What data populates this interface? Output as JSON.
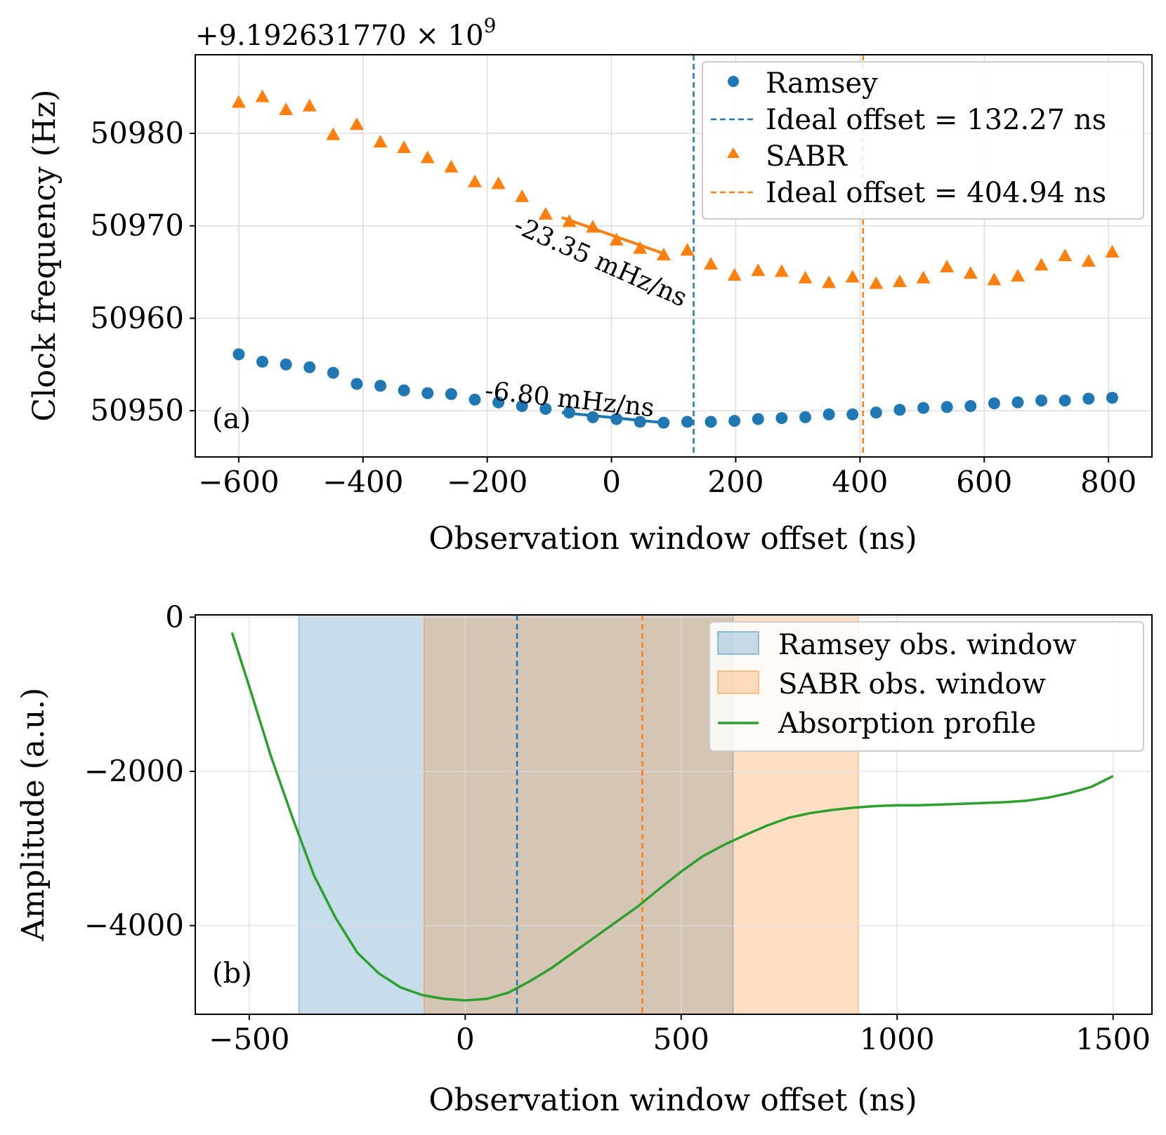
{
  "colors": {
    "ramsey": "#1f77b4",
    "sabr": "#ff7f0e",
    "absorption": "#2ca02c",
    "grid": "#dddddd"
  },
  "chart_data": [
    {
      "type": "scatter",
      "panel_label": "(a)",
      "offset_text": "+9.192631770 × 10",
      "offset_exponent": "9",
      "xlabel": "Observation window offset (ns)",
      "ylabel": "Clock frequency (Hz)",
      "xlim": [
        -670,
        870
      ],
      "ylim": [
        50945,
        50988.5
      ],
      "xticks": [
        -600,
        -400,
        -200,
        0,
        200,
        400,
        600,
        800
      ],
      "xtick_labels": [
        "−600",
        "−400",
        "−200",
        "0",
        "200",
        "400",
        "600",
        "800"
      ],
      "yticks": [
        50950,
        50960,
        50970,
        50980
      ],
      "ytick_labels": [
        "50950",
        "50960",
        "50970",
        "50980"
      ],
      "grid": true,
      "legend": [
        "Ramsey",
        "Ideal offset = 132.27 ns",
        "SABR",
        "Ideal offset = 404.94 ns"
      ],
      "legend_loc": "top-right",
      "series": [
        {
          "name": "Ramsey",
          "marker": "circle",
          "x": [
            -600,
            -562,
            -524,
            -486,
            -448,
            -410,
            -372,
            -334,
            -296,
            -258,
            -220,
            -182,
            -144,
            -106,
            -68,
            -30,
            8,
            46,
            84,
            122,
            160,
            198,
            236,
            274,
            312,
            350,
            388,
            426,
            464,
            502,
            540,
            578,
            616,
            654,
            692,
            730,
            768,
            806
          ],
          "y": [
            50956.1,
            50955.3,
            50955.0,
            50954.7,
            50954.1,
            50952.9,
            50952.7,
            50952.2,
            50951.9,
            50951.8,
            50951.2,
            50950.9,
            50950.5,
            50950.2,
            50949.8,
            50949.3,
            50949.1,
            50948.8,
            50948.7,
            50948.8,
            50948.8,
            50948.9,
            50949.1,
            50949.2,
            50949.3,
            50949.6,
            50949.6,
            50949.8,
            50950.1,
            50950.3,
            50950.4,
            50950.5,
            50950.8,
            50950.9,
            50951.1,
            50951.1,
            50951.3,
            50951.4
          ]
        },
        {
          "name": "SABR",
          "marker": "triangle",
          "x": [
            -600,
            -562,
            -524,
            -486,
            -448,
            -410,
            -372,
            -334,
            -296,
            -258,
            -220,
            -182,
            -144,
            -106,
            -68,
            -30,
            8,
            46,
            84,
            122,
            160,
            198,
            236,
            274,
            312,
            350,
            388,
            426,
            464,
            502,
            540,
            578,
            616,
            654,
            692,
            730,
            768,
            806
          ],
          "y": [
            50983.3,
            50983.9,
            50982.5,
            50982.9,
            50979.8,
            50980.9,
            50979.0,
            50978.4,
            50977.3,
            50976.3,
            50974.7,
            50974.5,
            50973.1,
            50971.2,
            50970.4,
            50969.8,
            50968.4,
            50967.5,
            50966.8,
            50967.3,
            50965.8,
            50964.6,
            50965.1,
            50965.0,
            50964.3,
            50963.8,
            50964.4,
            50963.7,
            50963.9,
            50964.3,
            50965.5,
            50964.8,
            50964.1,
            50964.5,
            50965.7,
            50966.7,
            50966.1,
            50967.1
          ]
        }
      ],
      "fits": [
        {
          "name": "Ramsey slope fit",
          "series": "Ramsey",
          "x": [
            -80,
            84
          ],
          "y": [
            50949.8,
            50948.7
          ],
          "label": "-6.80 mHz/ns",
          "label_x": -205,
          "label_y": 50951.3,
          "label_angle_deg": 6
        },
        {
          "name": "SABR slope fit",
          "series": "SABR",
          "x": [
            -80,
            84
          ],
          "y": [
            50970.9,
            50967.0
          ],
          "label": "-23.35 mHz/ns",
          "label_x": -160,
          "label_y": 50969.4,
          "label_angle_deg": 24
        }
      ],
      "vlines": [
        {
          "name": "Ideal offset Ramsey",
          "series": "Ramsey",
          "x": 132.27
        },
        {
          "name": "Ideal offset SABR",
          "series": "SABR",
          "x": 404.94
        }
      ]
    },
    {
      "type": "line",
      "panel_label": "(b)",
      "xlabel": "Observation window offset (ns)",
      "ylabel": "Amplitude (a.u.)",
      "xlim": [
        -625,
        1590
      ],
      "ylim": [
        -5150,
        30
      ],
      "xticks": [
        -500,
        0,
        500,
        1000,
        1500
      ],
      "xtick_labels": [
        "−500",
        "0",
        "500",
        "1000",
        "1500"
      ],
      "yticks": [
        0,
        -2000,
        -4000
      ],
      "ytick_labels": [
        "0",
        "−2000",
        "−4000"
      ],
      "grid": true,
      "legend": [
        "Ramsey obs. window",
        "SABR obs. window",
        "Absorption profile"
      ],
      "legend_loc": "top-right",
      "spans": [
        {
          "name": "Ramsey obs. window",
          "from": -385,
          "to": 620
        },
        {
          "name": "SABR obs. window",
          "from": -95,
          "to": 910
        }
      ],
      "vlines": [
        {
          "name": "Ideal offset Ramsey",
          "series": "Ramsey",
          "x": 120
        },
        {
          "name": "Ideal offset SABR",
          "series": "SABR",
          "x": 410
        }
      ],
      "series": [
        {
          "name": "Absorption profile",
          "x": [
            -540,
            -500,
            -450,
            -400,
            -350,
            -300,
            -250,
            -200,
            -150,
            -100,
            -50,
            0,
            50,
            100,
            150,
            200,
            250,
            300,
            350,
            400,
            450,
            500,
            550,
            600,
            650,
            700,
            750,
            800,
            850,
            900,
            950,
            1000,
            1050,
            1100,
            1150,
            1200,
            1250,
            1300,
            1350,
            1400,
            1450,
            1500
          ],
          "y": [
            -200,
            -900,
            -1800,
            -2600,
            -3350,
            -3900,
            -4350,
            -4620,
            -4800,
            -4900,
            -4950,
            -4970,
            -4950,
            -4870,
            -4720,
            -4550,
            -4350,
            -4150,
            -3950,
            -3750,
            -3520,
            -3300,
            -3100,
            -2950,
            -2820,
            -2700,
            -2600,
            -2540,
            -2500,
            -2470,
            -2450,
            -2440,
            -2440,
            -2430,
            -2420,
            -2410,
            -2400,
            -2380,
            -2340,
            -2280,
            -2200,
            -2060
          ]
        }
      ]
    }
  ]
}
